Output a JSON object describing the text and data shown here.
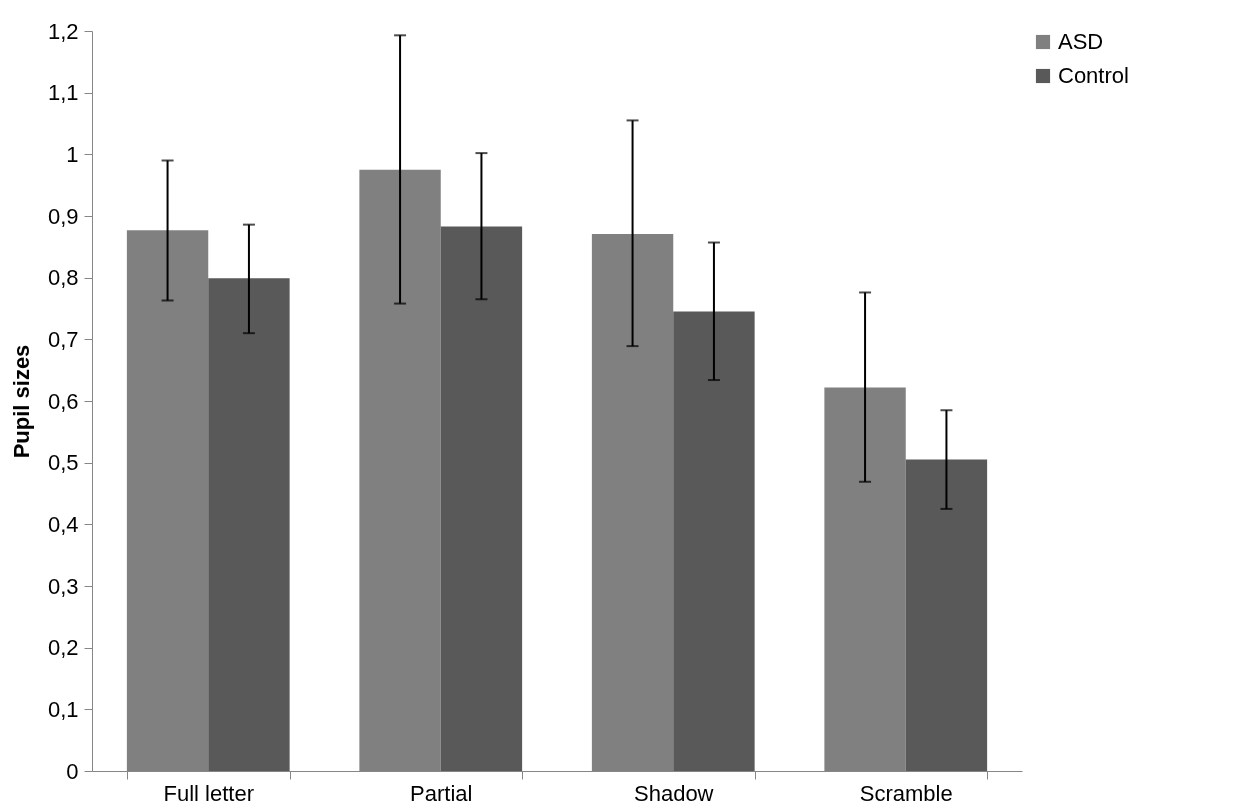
{
  "chart_data": {
    "type": "bar",
    "ylabel": "Pupil sizes",
    "categories": [
      "Full letter",
      "Partial",
      "Shadow",
      "Scramble"
    ],
    "series": [
      {
        "name": "ASD",
        "color": "#808080",
        "values": [
          0.877,
          0.975,
          0.871,
          0.622
        ],
        "errors": [
          [
            0.763,
            0.99
          ],
          [
            0.758,
            1.193
          ],
          [
            0.689,
            1.055
          ],
          [
            0.469,
            0.776
          ]
        ]
      },
      {
        "name": "Control",
        "color": "#595959",
        "values": [
          0.799,
          0.883,
          0.745,
          0.505
        ],
        "errors": [
          [
            0.71,
            0.886
          ],
          [
            0.765,
            1.002
          ],
          [
            0.634,
            0.857
          ],
          [
            0.425,
            0.585
          ]
        ]
      }
    ],
    "ylim": [
      0,
      1.2
    ],
    "yticks": [
      0,
      {
        "value": 0.1,
        "label": "0,1"
      },
      {
        "value": 0.2,
        "label": "0,2"
      },
      {
        "value": 0.3,
        "label": "0,3"
      },
      {
        "value": 0.4,
        "label": "0,4"
      },
      {
        "value": 0.5,
        "label": "0,5"
      },
      {
        "value": 0.6,
        "label": "0,6"
      },
      {
        "value": 0.7,
        "label": "0,7"
      },
      {
        "value": 0.8,
        "label": "0,8"
      },
      {
        "value": 0.9,
        "label": "0,9"
      },
      1,
      {
        "value": 1.1,
        "label": "1,1"
      },
      {
        "value": 1.2,
        "label": "1,2"
      }
    ],
    "grid": false,
    "legend": "right"
  }
}
